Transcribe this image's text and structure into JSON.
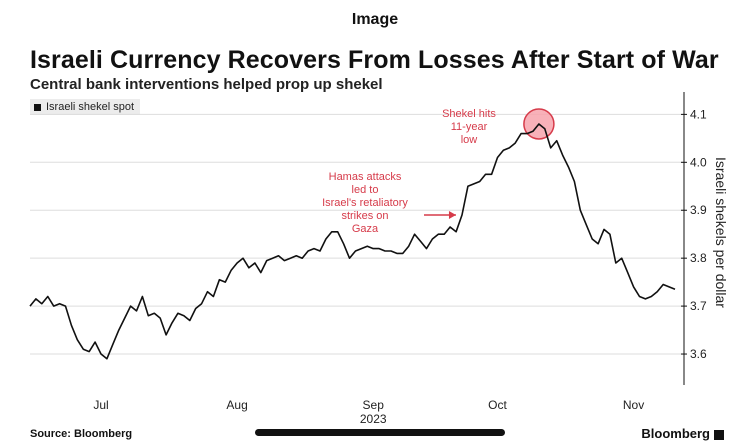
{
  "page_header": "Image",
  "footer": {
    "source": "Source: Bloomberg",
    "brand": "Bloomberg"
  },
  "colors": {
    "line": "#111111",
    "annotation": "#d63b4a",
    "highlight_fill": "#f7a3ad",
    "grid": "#dddddd"
  },
  "chart_data": {
    "type": "line",
    "title": "Israeli Currency Recovers From Losses After Start of War",
    "subtitle": "Central bank interventions helped prop up shekel",
    "ylabel": "Israeli shekels per dollar",
    "xlabel": "",
    "x_axis_year": "2023",
    "ylim": [
      3.55,
      4.13
    ],
    "y_ticks": [
      {
        "value": 3.6,
        "label": "3.6"
      },
      {
        "value": 3.7,
        "label": "3.7"
      },
      {
        "value": 3.8,
        "label": "3.8"
      },
      {
        "value": 3.9,
        "label": "3.9"
      },
      {
        "value": 4.0,
        "label": "4.0"
      },
      {
        "value": 4.1,
        "label": "4.1"
      }
    ],
    "x_ticks": [
      "Jul",
      "Aug",
      "Sep",
      "Oct",
      "Nov"
    ],
    "legend": {
      "position": "top-left",
      "entries": [
        "Israeli shekel spot"
      ]
    },
    "grid": true,
    "series": [
      {
        "name": "Israeli shekel spot",
        "values": [
          3.7,
          3.715,
          3.705,
          3.72,
          3.7,
          3.705,
          3.7,
          3.66,
          3.63,
          3.61,
          3.605,
          3.625,
          3.6,
          3.59,
          3.62,
          3.65,
          3.675,
          3.7,
          3.69,
          3.72,
          3.68,
          3.685,
          3.675,
          3.64,
          3.665,
          3.685,
          3.68,
          3.67,
          3.695,
          3.705,
          3.73,
          3.72,
          3.755,
          3.75,
          3.775,
          3.79,
          3.8,
          3.78,
          3.79,
          3.77,
          3.795,
          3.8,
          3.805,
          3.795,
          3.8,
          3.805,
          3.8,
          3.815,
          3.82,
          3.815,
          3.84,
          3.855,
          3.855,
          3.83,
          3.8,
          3.815,
          3.82,
          3.825,
          3.82,
          3.82,
          3.815,
          3.815,
          3.81,
          3.81,
          3.825,
          3.85,
          3.835,
          3.82,
          3.84,
          3.85,
          3.85,
          3.865,
          3.855,
          3.89,
          3.95,
          3.955,
          3.96,
          3.975,
          3.975,
          4.01,
          4.025,
          4.03,
          4.04,
          4.06,
          4.06,
          4.065,
          4.08,
          4.07,
          4.03,
          4.045,
          4.015,
          3.99,
          3.96,
          3.9,
          3.87,
          3.84,
          3.83,
          3.86,
          3.85,
          3.79,
          3.8,
          3.77,
          3.74,
          3.72,
          3.715,
          3.72,
          3.73,
          3.745,
          3.74,
          3.735
        ],
        "month_start_index": {
          "Jul": 12,
          "Aug": 35,
          "Sep": 58,
          "Oct": 79,
          "Nov": 102
        }
      }
    ],
    "annotations": [
      {
        "id": "war",
        "lines": [
          "Hamas attacks",
          "led to",
          "Israel's retaliatory",
          "strikes on",
          "Gaza"
        ],
        "points_to_index": 73,
        "arrow": true
      },
      {
        "id": "low",
        "lines": [
          "Shekel hits",
          "11-year",
          "low"
        ],
        "points_to_index": 86,
        "marker": "circle"
      }
    ]
  }
}
